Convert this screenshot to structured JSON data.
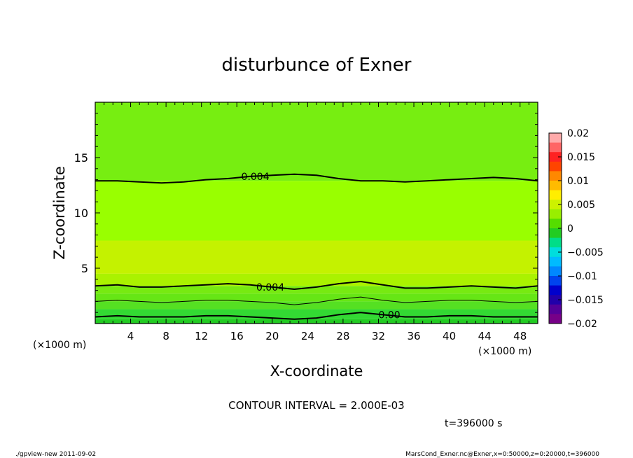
{
  "chart_data": {
    "type": "contour",
    "title": "disturbunce of Exner",
    "xlabel": "X-coordinate",
    "ylabel": "Z-coordinate",
    "x_unit_label": "(×1000 m)",
    "y_unit_label": "(×1000 m)",
    "xlim": [
      0,
      50
    ],
    "ylim": [
      0,
      20
    ],
    "x_ticks": [
      4,
      8,
      12,
      16,
      20,
      24,
      28,
      32,
      36,
      40,
      44,
      48
    ],
    "y_ticks": [
      5,
      10,
      15
    ],
    "contour_interval_text": "CONTOUR INTERVAL = 2.000E-03",
    "time_text": "t=396000 s",
    "contour_labels": [
      {
        "text": "0.004",
        "x": 16.5,
        "z": 13.3
      },
      {
        "text": "0.004",
        "x": 18.2,
        "z": 3.3
      },
      {
        "text": "0.00",
        "x": 32.0,
        "z": 0.8
      }
    ],
    "contour_lines": [
      {
        "level": 0.004,
        "z": [
          12.9,
          12.9,
          12.8,
          12.7,
          12.8,
          13.0,
          13.1,
          13.3,
          13.4,
          13.5,
          13.4,
          13.1,
          12.9,
          12.9,
          12.8,
          12.9,
          13.0,
          13.1,
          13.2,
          13.1,
          12.9
        ]
      },
      {
        "level": 0.004,
        "z": [
          3.4,
          3.5,
          3.3,
          3.3,
          3.4,
          3.5,
          3.6,
          3.5,
          3.3,
          3.1,
          3.3,
          3.6,
          3.8,
          3.5,
          3.2,
          3.2,
          3.3,
          3.4,
          3.3,
          3.2,
          3.4
        ]
      },
      {
        "level": 0.002,
        "z": [
          2.0,
          2.1,
          2.0,
          1.9,
          2.0,
          2.1,
          2.1,
          2.0,
          1.9,
          1.7,
          1.9,
          2.2,
          2.4,
          2.1,
          1.9,
          2.0,
          2.1,
          2.1,
          2.0,
          1.9,
          2.0
        ]
      },
      {
        "level": 0.0,
        "z": [
          0.6,
          0.7,
          0.6,
          0.6,
          0.6,
          0.7,
          0.7,
          0.6,
          0.5,
          0.4,
          0.5,
          0.8,
          1.0,
          0.8,
          0.6,
          0.6,
          0.7,
          0.7,
          0.6,
          0.6,
          0.6
        ]
      }
    ],
    "fill_bands": [
      {
        "z_low": 0.0,
        "z_high": 0.4,
        "color": "#22cc22"
      },
      {
        "z_low": 0.4,
        "z_high": 1.3,
        "color": "#33d933"
      },
      {
        "z_low": 1.3,
        "z_high": 2.0,
        "color": "#55e022"
      },
      {
        "z_low": 2.0,
        "z_high": 2.7,
        "color": "#66e615"
      },
      {
        "z_low": 2.7,
        "z_high": 3.4,
        "color": "#77ea11"
      },
      {
        "z_low": 3.4,
        "z_high": 4.5,
        "color": "#aaf200"
      },
      {
        "z_low": 4.5,
        "z_high": 7.5,
        "color": "#c4f200"
      },
      {
        "z_low": 7.5,
        "z_high": 12.9,
        "color": "#99ff00"
      },
      {
        "z_low": 12.9,
        "z_high": 20.0,
        "color": "#77ee11"
      }
    ],
    "colorbar": {
      "labels": [
        "0.02",
        "0.015",
        "0.01",
        "0.005",
        "0",
        "−0.005",
        "−0.01",
        "−0.015",
        "−0.02"
      ],
      "colors": [
        "#ffaaaa",
        "#ff6666",
        "#ff2222",
        "#ff4400",
        "#ff8800",
        "#ffbb00",
        "#ffee00",
        "#ccf200",
        "#99ee00",
        "#55dd00",
        "#22cc22",
        "#00dd88",
        "#00dddd",
        "#00bbff",
        "#0088ff",
        "#0044ee",
        "#0000cc",
        "#2200aa",
        "#550099",
        "#770088"
      ]
    }
  },
  "footer": {
    "left": "./gpview-new   2011-09-02",
    "right": "MarsCond_Exner.nc@Exner,x=0:50000,z=0:20000,t=396000"
  }
}
